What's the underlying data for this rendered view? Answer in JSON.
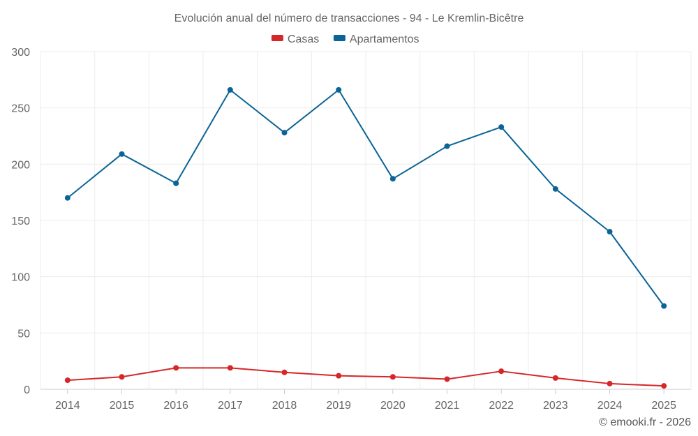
{
  "chart_data": {
    "type": "line",
    "title": "Evolución anual del número de transacciones - 94 - Le Kremlin-Bicêtre",
    "categories": [
      "2014",
      "2015",
      "2016",
      "2017",
      "2018",
      "2019",
      "2020",
      "2021",
      "2022",
      "2023",
      "2024",
      "2025"
    ],
    "series": [
      {
        "name": "Casas",
        "color": "#d62728",
        "values": [
          8,
          11,
          19,
          19,
          15,
          12,
          11,
          9,
          16,
          10,
          5,
          3
        ]
      },
      {
        "name": "Apartamentos",
        "color": "#0a6496",
        "values": [
          170,
          209,
          183,
          266,
          228,
          266,
          187,
          216,
          233,
          178,
          140,
          74
        ]
      }
    ],
    "ylim": [
      0,
      300
    ],
    "yticks": [
      0,
      50,
      100,
      150,
      200,
      250,
      300
    ],
    "ytick_labels": [
      "0",
      "50",
      "100",
      "150",
      "200",
      "250",
      "300"
    ],
    "xlabel": "",
    "ylabel": "",
    "grid": true,
    "legend": "top-center"
  },
  "credit": "© emooki.fr - 2026"
}
